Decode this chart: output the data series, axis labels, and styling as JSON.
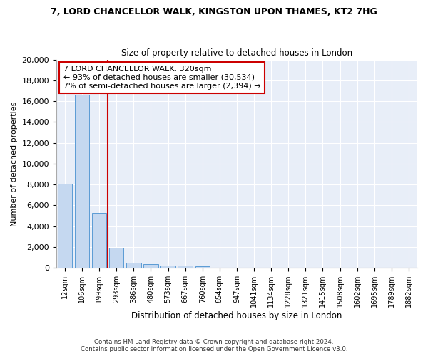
{
  "title_line1": "7, LORD CHANCELLOR WALK, KINGSTON UPON THAMES, KT2 7HG",
  "title_line2": "Size of property relative to detached houses in London",
  "xlabel": "Distribution of detached houses by size in London",
  "ylabel": "Number of detached properties",
  "annotation_line1": "7 LORD CHANCELLOR WALK: 320sqm",
  "annotation_line2": "← 93% of detached houses are smaller (30,534)",
  "annotation_line3": "7% of semi-detached houses are larger (2,394) →",
  "bar_color": "#c5d8f0",
  "bar_edge_color": "#5b9bd5",
  "vline_color": "#cc0000",
  "annotation_box_edgecolor": "#cc0000",
  "bg_color": "#e8eef8",
  "grid_color": "#ffffff",
  "footer_line1": "Contains HM Land Registry data © Crown copyright and database right 2024.",
  "footer_line2": "Contains public sector information licensed under the Open Government Licence v3.0.",
  "bin_labels": [
    "12sqm",
    "106sqm",
    "199sqm",
    "293sqm",
    "386sqm",
    "480sqm",
    "573sqm",
    "667sqm",
    "760sqm",
    "854sqm",
    "947sqm",
    "1041sqm",
    "1134sqm",
    "1228sqm",
    "1321sqm",
    "1415sqm",
    "1508sqm",
    "1602sqm",
    "1695sqm",
    "1789sqm",
    "1882sqm"
  ],
  "bar_values": [
    8050,
    16600,
    5300,
    1900,
    500,
    330,
    250,
    200,
    150,
    0,
    0,
    0,
    0,
    0,
    0,
    0,
    0,
    0,
    0,
    0,
    0
  ],
  "ylim": [
    0,
    20000
  ],
  "yticks": [
    0,
    2000,
    4000,
    6000,
    8000,
    10000,
    12000,
    14000,
    16000,
    18000,
    20000
  ],
  "vline_x": 2.5
}
